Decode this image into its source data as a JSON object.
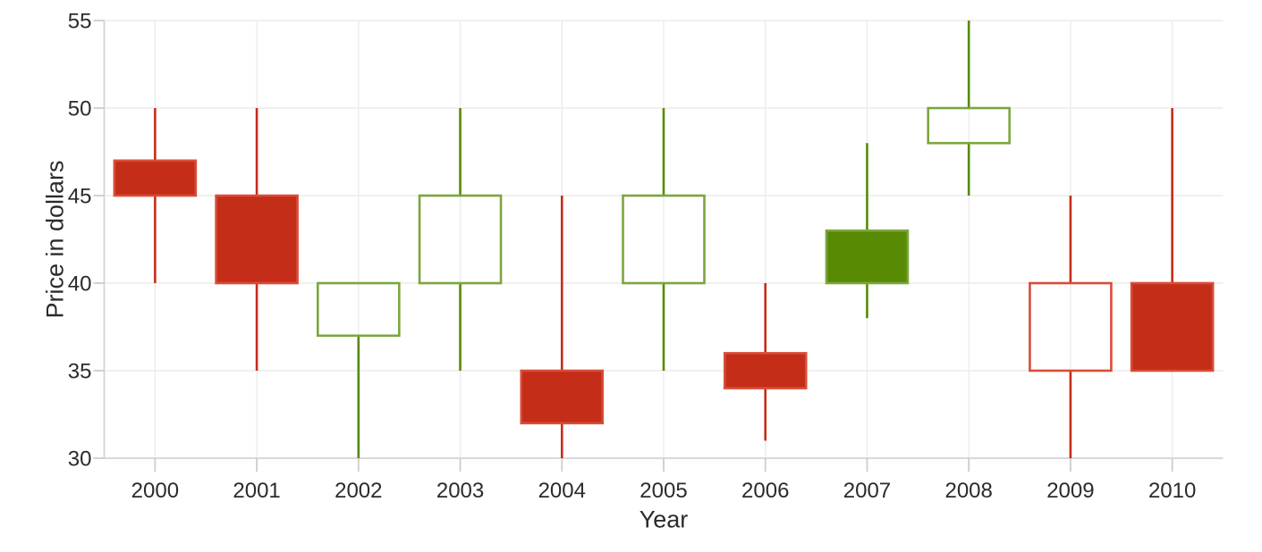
{
  "chart_data": {
    "type": "candlestick",
    "title": "",
    "xlabel": "Year",
    "ylabel": "Price in dollars",
    "categories": [
      "2000",
      "2001",
      "2002",
      "2003",
      "2004",
      "2005",
      "2006",
      "2007",
      "2008",
      "2009",
      "2010"
    ],
    "ylim": [
      30,
      55
    ],
    "yticks": [
      30,
      35,
      40,
      45,
      50,
      55
    ],
    "grid": true,
    "legend_position": "none",
    "series": [
      {
        "name": "Price",
        "points": [
          {
            "category": "2000",
            "open": 47,
            "high": 50,
            "low": 40,
            "close": 45,
            "color": "red",
            "body": "filled"
          },
          {
            "category": "2001",
            "open": 45,
            "high": 50,
            "low": 35,
            "close": 40,
            "color": "red",
            "body": "filled"
          },
          {
            "category": "2002",
            "open": 37,
            "high": 40,
            "low": 30,
            "close": 40,
            "color": "green",
            "body": "hollow"
          },
          {
            "category": "2003",
            "open": 40,
            "high": 50,
            "low": 35,
            "close": 45,
            "color": "green",
            "body": "hollow"
          },
          {
            "category": "2004",
            "open": 35,
            "high": 45,
            "low": 30,
            "close": 32,
            "color": "red",
            "body": "filled"
          },
          {
            "category": "2005",
            "open": 40,
            "high": 50,
            "low": 35,
            "close": 45,
            "color": "green",
            "body": "hollow"
          },
          {
            "category": "2006",
            "open": 36,
            "high": 40,
            "low": 31,
            "close": 34,
            "color": "red",
            "body": "filled"
          },
          {
            "category": "2007",
            "open": 43,
            "high": 48,
            "low": 38,
            "close": 40,
            "color": "green",
            "body": "filled"
          },
          {
            "category": "2008",
            "open": 48,
            "high": 55,
            "low": 45,
            "close": 50,
            "color": "green",
            "body": "hollow"
          },
          {
            "category": "2009",
            "open": 35,
            "high": 45,
            "low": 30,
            "close": 40,
            "color": "red",
            "body": "hollow"
          },
          {
            "category": "2010",
            "open": 40,
            "high": 50,
            "low": 35,
            "close": 35,
            "color": "red",
            "body": "filled"
          }
        ]
      }
    ],
    "colors": {
      "red_fill": "#C42D18",
      "red_stroke": "#D94D38",
      "green_fill": "#588A03",
      "green_stroke": "#7BA63D",
      "gridline": "#ECECEC",
      "axis_line": "#D4D4D4",
      "tick_mark": "#CDCDCD",
      "label_text": "#2B2B2B"
    }
  }
}
